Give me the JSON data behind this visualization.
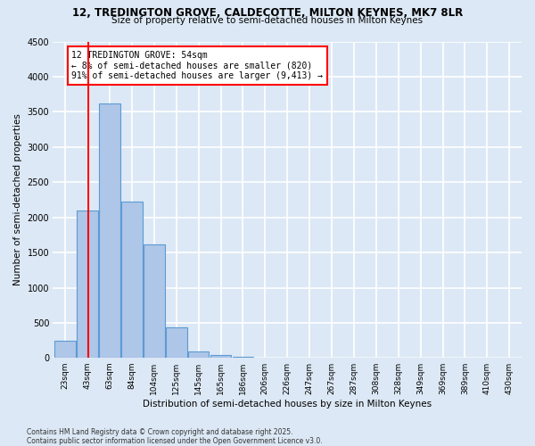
{
  "title1": "12, TREDINGTON GROVE, CALDECOTTE, MILTON KEYNES, MK7 8LR",
  "title2": "Size of property relative to semi-detached houses in Milton Keynes",
  "xlabel": "Distribution of semi-detached houses by size in Milton Keynes",
  "ylabel": "Number of semi-detached properties",
  "footnote": "Contains HM Land Registry data © Crown copyright and database right 2025.\nContains public sector information licensed under the Open Government Licence v3.0.",
  "bar_labels": [
    "23sqm",
    "43sqm",
    "63sqm",
    "84sqm",
    "104sqm",
    "125sqm",
    "145sqm",
    "165sqm",
    "186sqm",
    "206sqm",
    "226sqm",
    "247sqm",
    "267sqm",
    "287sqm",
    "308sqm",
    "328sqm",
    "349sqm",
    "369sqm",
    "389sqm",
    "410sqm",
    "430sqm"
  ],
  "bar_values": [
    250,
    2100,
    3620,
    2220,
    1620,
    430,
    100,
    45,
    15,
    0,
    0,
    0,
    0,
    0,
    0,
    0,
    0,
    0,
    0,
    0,
    0
  ],
  "bar_color": "#aec6e8",
  "bar_edge_color": "#5b9bd5",
  "bg_color": "#dce8f5",
  "grid_color": "#ffffff",
  "vline_color": "red",
  "annotation_title": "12 TREDINGTON GROVE: 54sqm",
  "annotation_line1": "← 8% of semi-detached houses are smaller (820)",
  "annotation_line2": "91% of semi-detached houses are larger (9,413) →",
  "ylim": [
    0,
    4500
  ],
  "yticks": [
    0,
    500,
    1000,
    1500,
    2000,
    2500,
    3000,
    3500,
    4000,
    4500
  ]
}
